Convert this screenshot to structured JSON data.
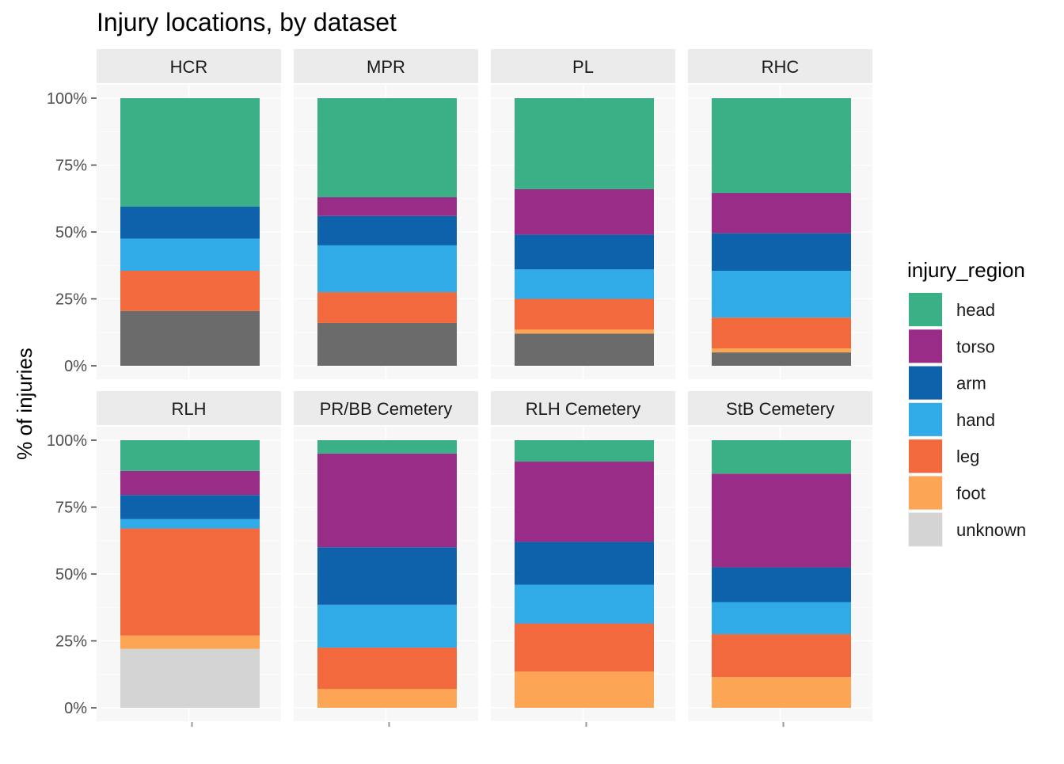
{
  "chart_data": {
    "type": "bar",
    "stacked": true,
    "faceted": true,
    "title": "Injury locations, by dataset",
    "ylabel": "% of injuries",
    "xlabel": "",
    "ylim": [
      0,
      100
    ],
    "yticks": [
      "0%",
      "25%",
      "50%",
      "75%",
      "100%"
    ],
    "legend_title": "injury_region",
    "legend_position": "right",
    "grid": true,
    "series": [
      {
        "name": "head",
        "color": "#3BB086"
      },
      {
        "name": "torso",
        "color": "#992C86"
      },
      {
        "name": "arm",
        "color": "#0E62AC"
      },
      {
        "name": "hand",
        "color": "#31ABE8"
      },
      {
        "name": "leg",
        "color": "#F1693C"
      },
      {
        "name": "foot",
        "color": "#FCA655"
      },
      {
        "name": "unknown",
        "color": "#D4D4D4"
      }
    ],
    "unlisted_color": "#6B6B6B",
    "panels": [
      {
        "name": "HCR",
        "values": {
          "unlisted": 20.5,
          "foot": 0,
          "leg": 15,
          "hand": 12,
          "arm": 12,
          "torso": 0,
          "head": 40.5
        }
      },
      {
        "name": "MPR",
        "values": {
          "unlisted": 16,
          "foot": 0,
          "leg": 11.5,
          "hand": 17.5,
          "arm": 11,
          "torso": 7,
          "head": 37
        }
      },
      {
        "name": "PL",
        "values": {
          "unlisted": 12,
          "foot": 1.5,
          "leg": 11.5,
          "hand": 11,
          "arm": 13,
          "torso": 17,
          "head": 34
        }
      },
      {
        "name": "RHC",
        "values": {
          "unlisted": 5,
          "foot": 1.5,
          "leg": 11.5,
          "hand": 17.5,
          "arm": 14,
          "torso": 15,
          "head": 35.5
        }
      },
      {
        "name": "RLH",
        "values": {
          "unknown": 22,
          "foot": 5,
          "leg": 40,
          "hand": 3.5,
          "arm": 9,
          "torso": 9,
          "head": 11.5
        }
      },
      {
        "name": "PR/BB Cemetery",
        "values": {
          "foot": 7,
          "leg": 15.5,
          "hand": 16,
          "arm": 21.5,
          "torso": 35,
          "head": 5
        }
      },
      {
        "name": "RLH Cemetery",
        "values": {
          "foot": 13.5,
          "leg": 18,
          "hand": 14.5,
          "arm": 16,
          "torso": 30,
          "head": 8
        }
      },
      {
        "name": "StB Cemetery",
        "values": {
          "foot": 11.5,
          "leg": 16,
          "hand": 12,
          "arm": 13,
          "torso": 35,
          "head": 12.5
        }
      }
    ]
  }
}
